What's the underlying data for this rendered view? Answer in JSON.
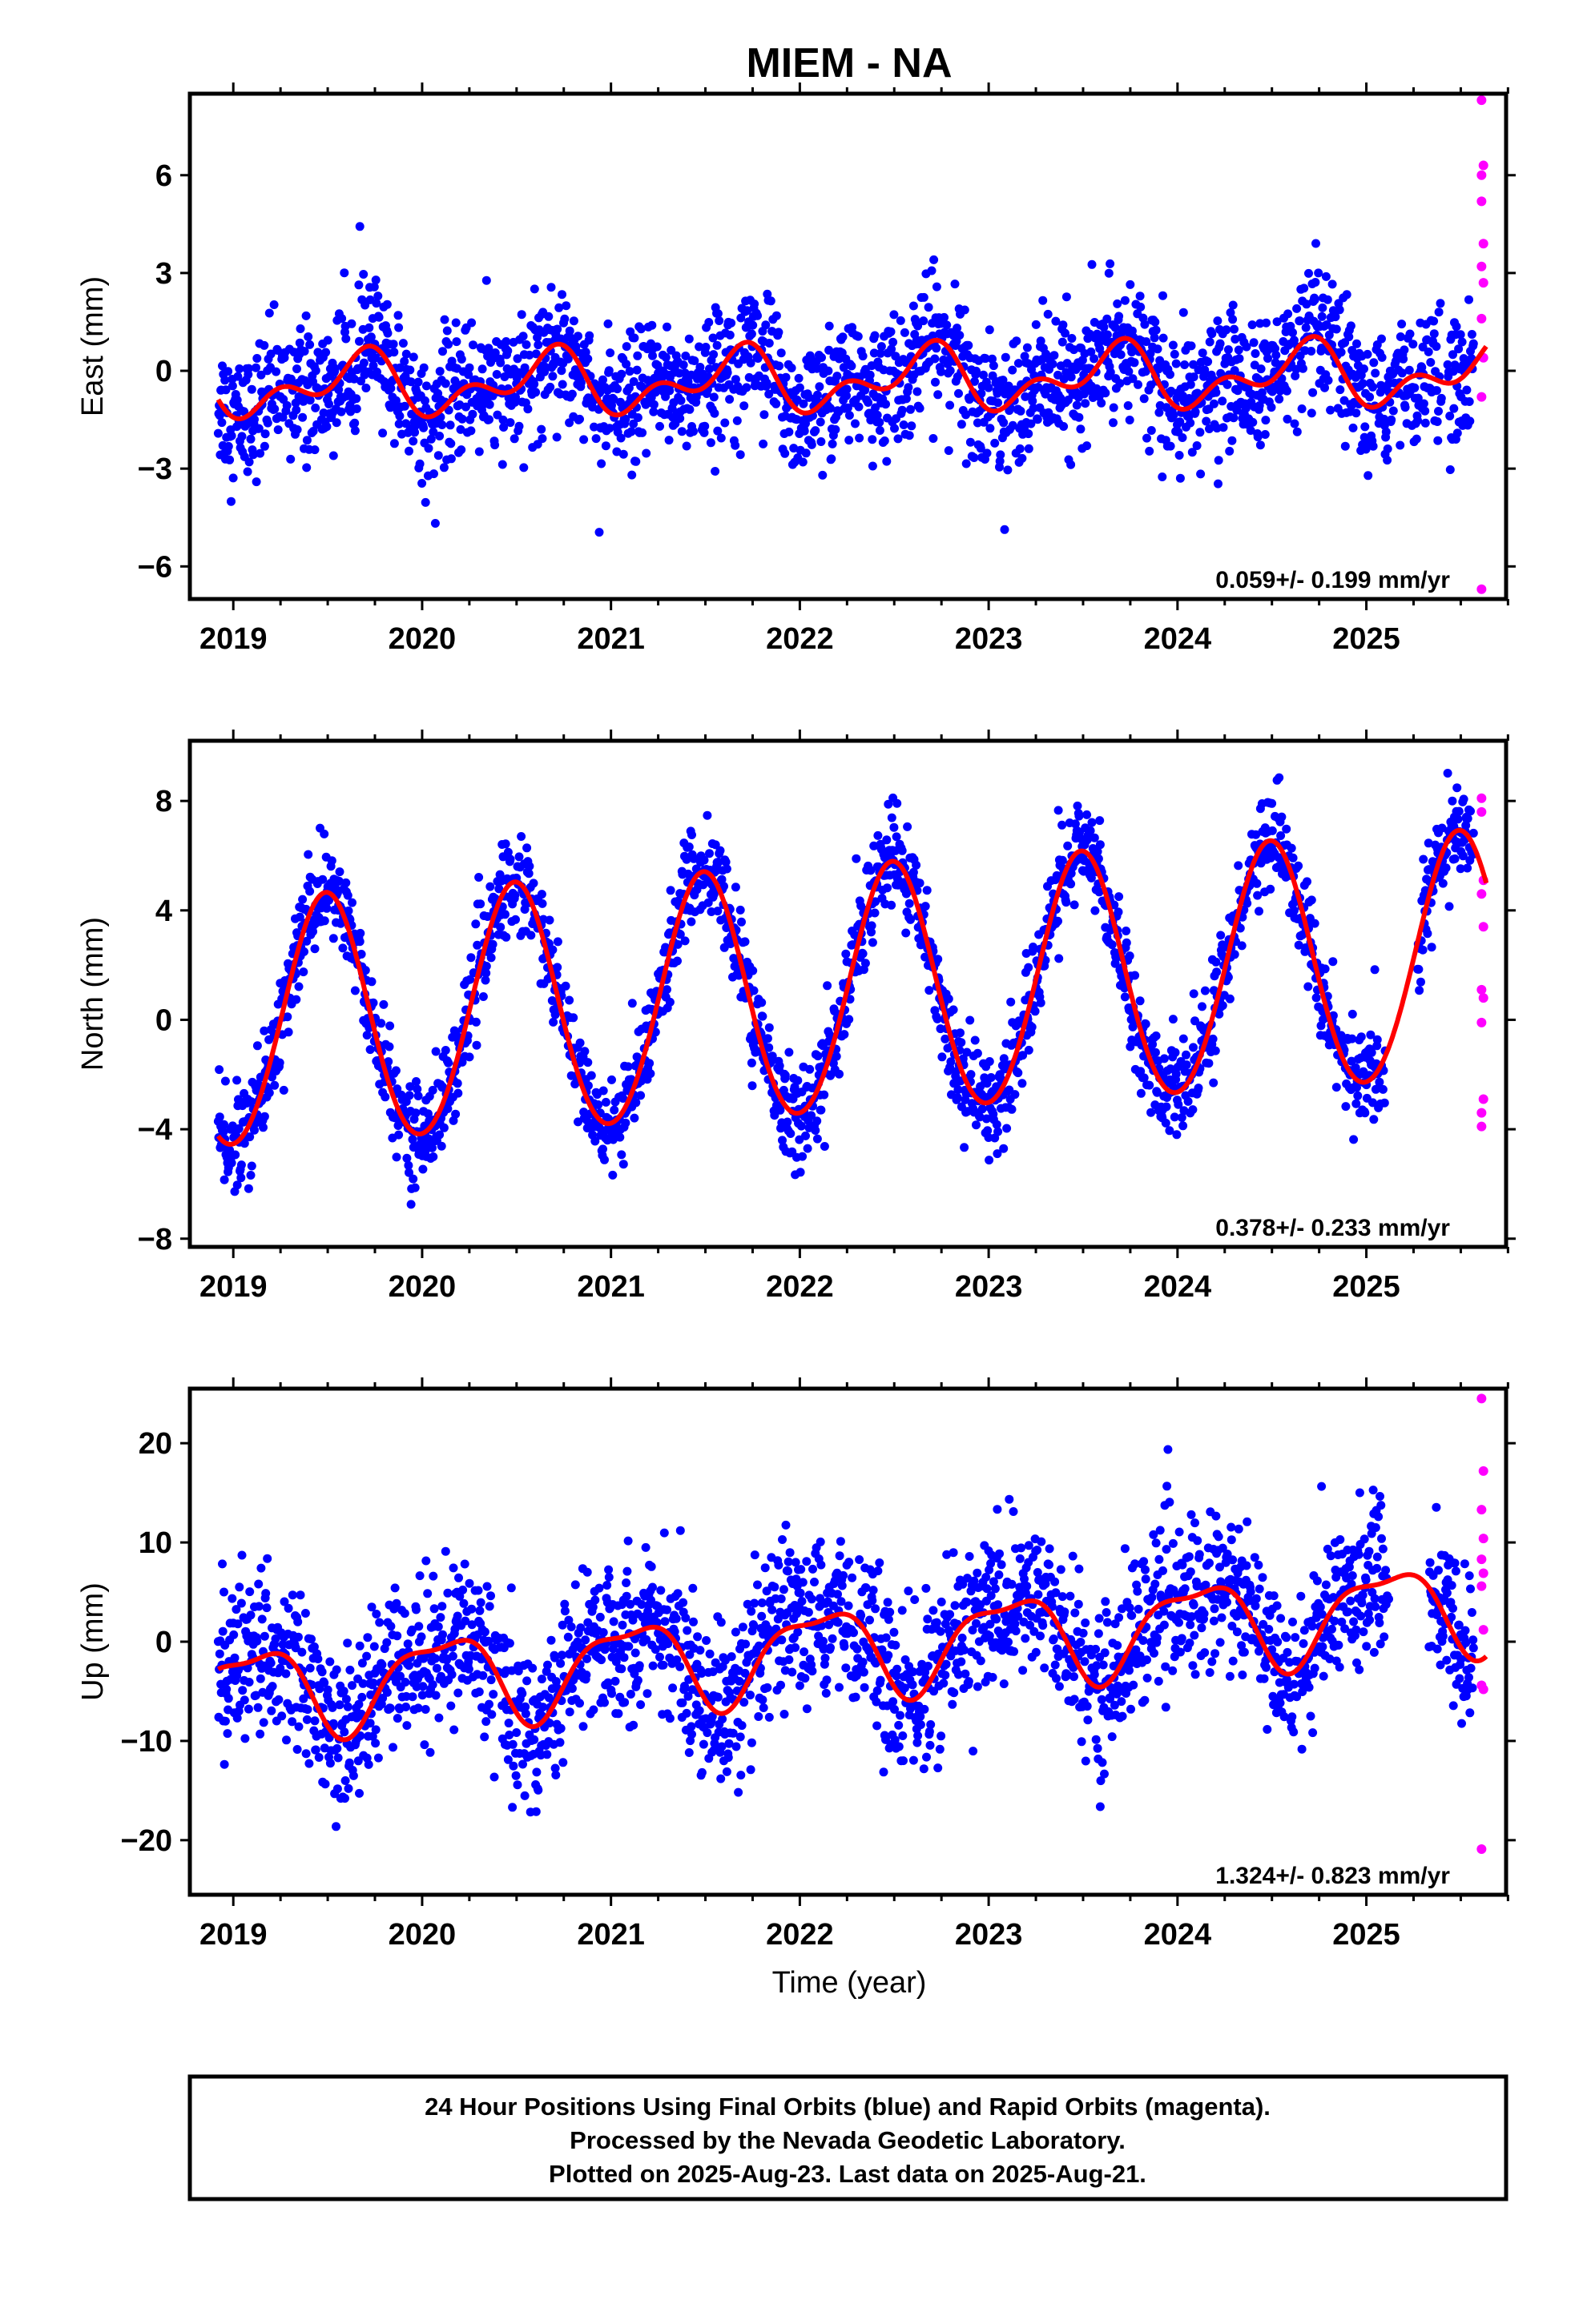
{
  "title": "MIEM - NA",
  "colors": {
    "final": "#0000ff",
    "rapid": "#ff00ff",
    "model": "#ff0000",
    "frame": "#000000"
  },
  "xlabel": "Time (year)",
  "footer": {
    "line1": "24 Hour Positions Using Final Orbits (blue) and Rapid Orbits (magenta).",
    "line2": "Processed by the Nevada Geodetic Laboratory.",
    "line3": "Plotted on 2025-Aug-23. Last data on 2025-Aug-21."
  },
  "chart_data": [
    {
      "type": "scatter",
      "component": "east",
      "ylabel": "East (mm)",
      "rate_label": "0.059+/- 0.199 mm/yr",
      "xlim": [
        2018.77,
        2025.74
      ],
      "ylim": [
        -7.0,
        8.5
      ],
      "x_ticks": [
        2019,
        2020,
        2021,
        2022,
        2023,
        2024,
        2025
      ],
      "y_ticks": [
        -6,
        -3,
        0,
        3,
        6
      ],
      "model": {
        "offset": -0.3,
        "rate": 0.059,
        "annual_sin": -0.6,
        "annual_cos": -0.4,
        "semiannual_sin": 0.05,
        "semiannual_cos": -0.55,
        "t0": 2022.0
      },
      "final_series": {
        "start": 2018.92,
        "end": 2025.57,
        "gap": [
          2025.4,
          2025.43
        ],
        "noise": 1.0
      },
      "rapid_points": [
        [
          2025.61,
          8.3
        ],
        [
          2025.61,
          6.0
        ],
        [
          2025.62,
          6.3
        ],
        [
          2025.61,
          5.2
        ],
        [
          2025.62,
          3.9
        ],
        [
          2025.61,
          3.2
        ],
        [
          2025.62,
          2.7
        ],
        [
          2025.61,
          1.6
        ],
        [
          2025.62,
          0.4
        ],
        [
          2025.61,
          -0.8
        ],
        [
          2025.61,
          -6.7
        ]
      ]
    },
    {
      "type": "scatter",
      "component": "north",
      "ylabel": "North (mm)",
      "rate_label": "0.378+/- 0.233 mm/yr",
      "xlim": [
        2018.77,
        2025.74
      ],
      "ylim": [
        -8.3,
        10.2
      ],
      "x_ticks": [
        2019,
        2020,
        2021,
        2022,
        2023,
        2024,
        2025
      ],
      "y_ticks": [
        -8,
        -4,
        0,
        4,
        8
      ],
      "model": {
        "offset": 0.9,
        "rate": 0.378,
        "annual_sin": 0.3,
        "annual_cos": -4.5,
        "semiannual_sin": 0.0,
        "semiannual_cos": 0.2,
        "t0": 2022.0
      },
      "final_series": {
        "start": 2018.92,
        "end": 2025.57,
        "gap": [
          2025.1,
          2025.27
        ],
        "noise": 0.9
      },
      "rapid_points": [
        [
          2025.61,
          8.1
        ],
        [
          2025.61,
          7.6
        ],
        [
          2025.62,
          5.1
        ],
        [
          2025.61,
          4.6
        ],
        [
          2025.62,
          3.4
        ],
        [
          2025.61,
          1.1
        ],
        [
          2025.62,
          0.8
        ],
        [
          2025.61,
          -0.1
        ],
        [
          2025.62,
          -2.9
        ],
        [
          2025.61,
          -3.4
        ],
        [
          2025.61,
          -3.9
        ]
      ]
    },
    {
      "type": "scatter",
      "component": "up",
      "ylabel": "Up (mm)",
      "rate_label": "1.324+/- 0.823 mm/yr",
      "xlim": [
        2018.77,
        2025.74
      ],
      "ylim": [
        -25.5,
        25.5
      ],
      "x_ticks": [
        2019,
        2020,
        2021,
        2022,
        2023,
        2024,
        2025
      ],
      "y_ticks": [
        -20,
        -10,
        0,
        10,
        20
      ],
      "model": {
        "offset": -1.0,
        "rate": 1.324,
        "annual_sin": 2.6,
        "annual_cos": 3.4,
        "semiannual_sin": -1.2,
        "semiannual_cos": -0.8,
        "t0": 2022.0
      },
      "final_series": {
        "start": 2018.92,
        "end": 2025.57,
        "gap": [
          2025.12,
          2025.33
        ],
        "noise": 4.0
      },
      "rapid_points": [
        [
          2025.61,
          24.5
        ],
        [
          2025.62,
          17.2
        ],
        [
          2025.61,
          13.3
        ],
        [
          2025.62,
          10.4
        ],
        [
          2025.61,
          8.3
        ],
        [
          2025.62,
          6.9
        ],
        [
          2025.61,
          5.6
        ],
        [
          2025.62,
          1.2
        ],
        [
          2025.61,
          -4.4
        ],
        [
          2025.62,
          -4.8
        ],
        [
          2025.61,
          -20.9
        ]
      ]
    }
  ]
}
